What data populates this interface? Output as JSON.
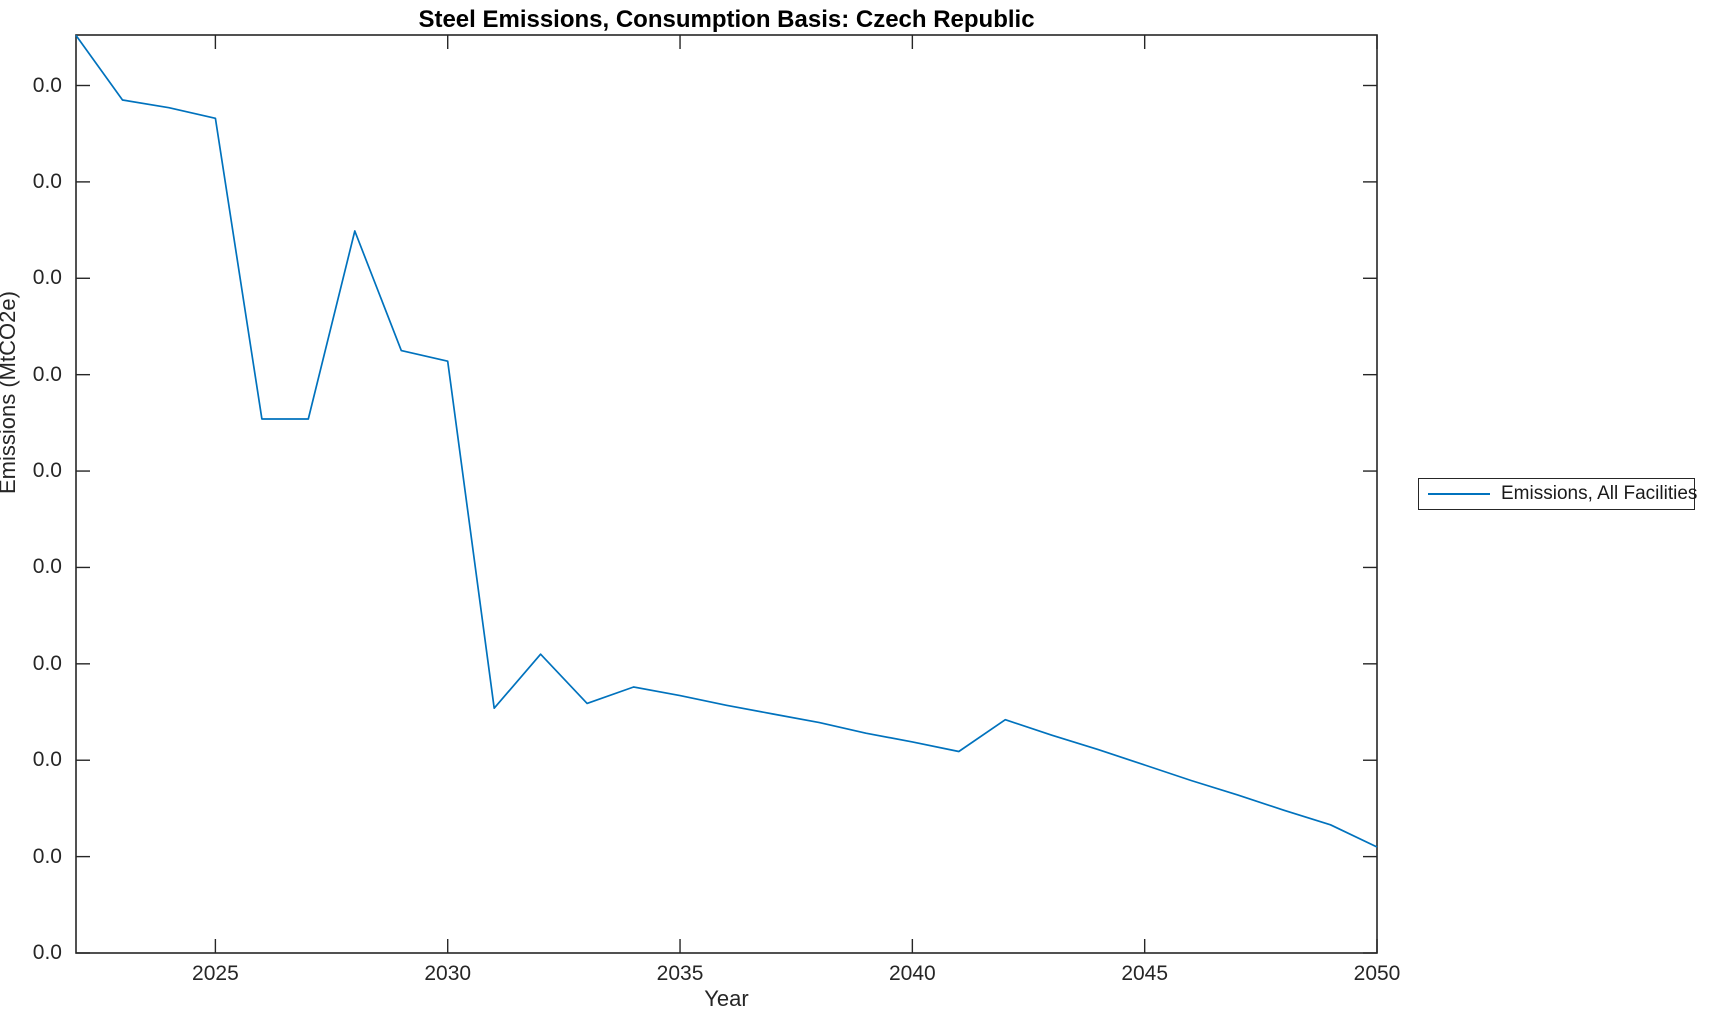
{
  "figure": {
    "background": "#ffffff"
  },
  "legend": {
    "position": "right-outside-center",
    "entries": [
      {
        "label": "Emissions, All Facilities",
        "color": "#0072BD",
        "marker": "line"
      }
    ]
  },
  "colors": {
    "series_blue": "#0072BD",
    "axis": "#262626",
    "title": "#000000",
    "background": "#ffffff"
  },
  "chart_data": {
    "type": "line",
    "title": "Steel Emissions, Consumption Basis: Czech Republic",
    "xlabel": "Year",
    "ylabel": "Emissions (MtCO2e)",
    "grid": false,
    "box": true,
    "tick_direction": "in",
    "x_range": [
      2022,
      2050
    ],
    "x_ticks": [
      2025,
      2030,
      2035,
      2040,
      2045,
      2050
    ],
    "x_tick_labels": [
      "2025",
      "2030",
      "2035",
      "2040",
      "2045",
      "2050"
    ],
    "y_tick_count": 10,
    "y_tick_labels": [
      "0.0",
      "0.0",
      "0.0",
      "0.0",
      "0.0",
      "0.0",
      "0.0",
      "0.0",
      "0.0",
      "0.0"
    ],
    "y_axis_note": "Every y tick label renders as 0.0 (one-decimal formatting of very small emission values); series y values below are expressed in y-tick units above the bottom tick (0 = bottom tick, 9 = top tick), as read from the plot.",
    "legend_position": "right-outside-center",
    "series": [
      {
        "name": "Emissions, All Facilities",
        "color": "#0072BD",
        "x": [
          2022,
          2023,
          2024,
          2025,
          2026,
          2027,
          2028,
          2029,
          2030,
          2031,
          2032,
          2033,
          2034,
          2035,
          2036,
          2037,
          2038,
          2039,
          2040,
          2041,
          2042,
          2043,
          2044,
          2045,
          2046,
          2047,
          2048,
          2049,
          2050
        ],
        "y_tick_units": [
          9.52,
          8.85,
          8.77,
          8.66,
          5.54,
          5.54,
          7.49,
          6.25,
          6.14,
          2.54,
          3.1,
          2.59,
          2.76,
          2.67,
          2.57,
          2.48,
          2.39,
          2.28,
          2.19,
          2.09,
          2.42,
          2.26,
          2.11,
          1.95,
          1.79,
          1.64,
          1.48,
          1.33,
          1.1
        ]
      }
    ]
  }
}
